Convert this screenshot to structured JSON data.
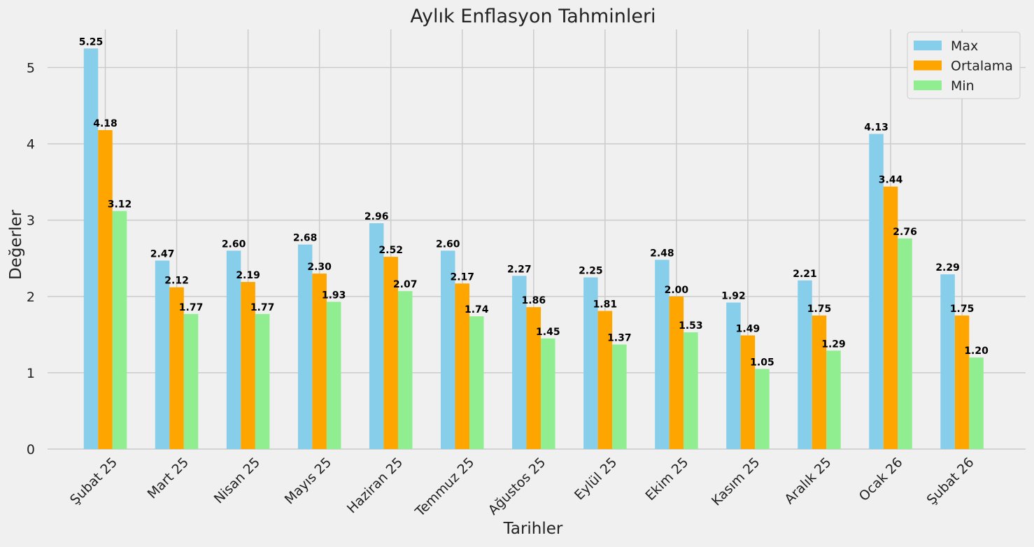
{
  "chart_data": {
    "type": "bar",
    "title": "Aylık Enflasyon Tahminleri",
    "xlabel": "Tarihler",
    "ylabel": "Değerler",
    "ylim": [
      0,
      5.5
    ],
    "yticks": [
      0,
      1,
      2,
      3,
      4,
      5
    ],
    "grid": true,
    "legend_position": "top-right",
    "categories": [
      "Şubat 25",
      "Mart 25",
      "Nisan 25",
      "Mayıs 25",
      "Haziran 25",
      "Temmuz 25",
      "Ağustos 25",
      "Eylül 25",
      "Ekim 25",
      "Kasım 25",
      "Aralık 25",
      "Ocak 26",
      "Şubat 26"
    ],
    "series": [
      {
        "name": "Max",
        "color": "#87ceeb",
        "values": [
          5.25,
          2.47,
          2.6,
          2.68,
          2.96,
          2.6,
          2.27,
          2.25,
          2.48,
          1.92,
          2.21,
          4.13,
          2.29
        ]
      },
      {
        "name": "Ortalama",
        "color": "#ffa500",
        "values": [
          4.18,
          2.12,
          2.19,
          2.3,
          2.52,
          2.17,
          1.86,
          1.81,
          2.0,
          1.49,
          1.75,
          3.44,
          1.75
        ]
      },
      {
        "name": "Min",
        "color": "#90ee90",
        "values": [
          3.12,
          1.77,
          1.77,
          1.93,
          2.07,
          1.74,
          1.45,
          1.37,
          1.53,
          1.05,
          1.29,
          2.76,
          1.2
        ]
      }
    ]
  }
}
